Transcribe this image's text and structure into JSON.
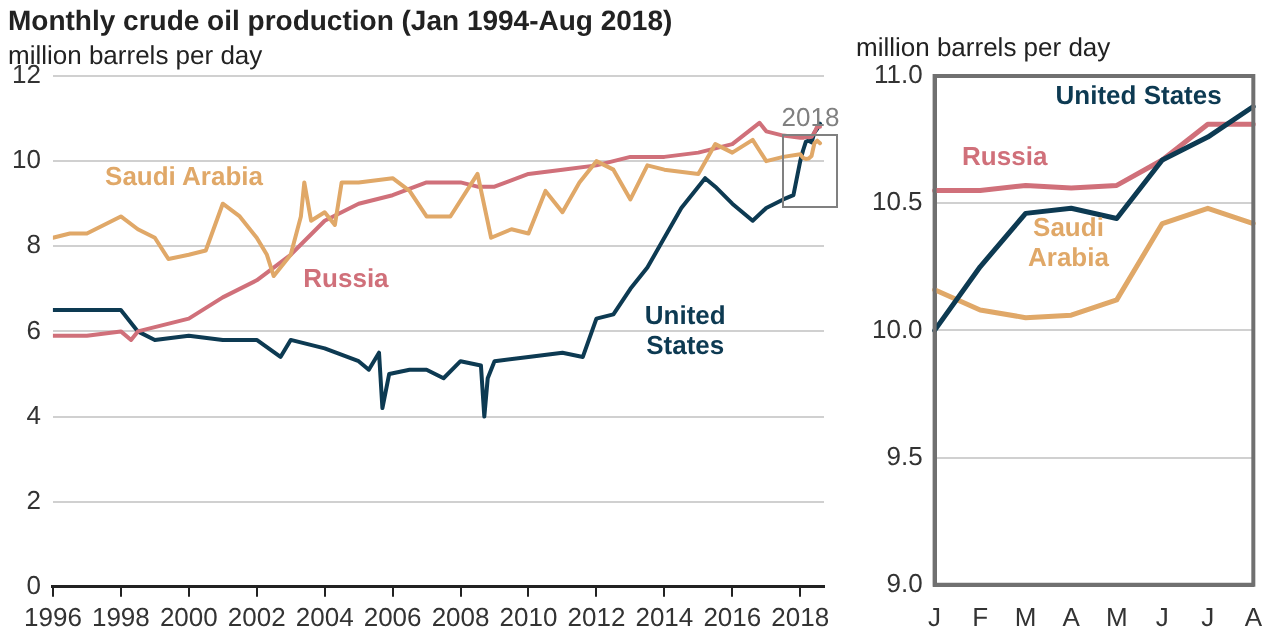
{
  "chart_data": [
    {
      "type": "line",
      "title": "Monthly crude oil production (Jan 1994-Aug 2018)",
      "ylabel": "million barrels per day",
      "xlim": [
        1996,
        2018.7
      ],
      "xticks": [
        1996,
        1998,
        2000,
        2002,
        2004,
        2006,
        2008,
        2010,
        2012,
        2014,
        2016,
        2018
      ],
      "ylim": [
        0,
        12
      ],
      "yticks": [
        0,
        2,
        4,
        6,
        8,
        10,
        12
      ],
      "grid": "y",
      "legend": false,
      "annotations": [
        {
          "text": "2018",
          "x": 2018.3,
          "y": 11
        }
      ],
      "series": [
        {
          "name": "Saudi Arabia",
          "color": "#e0a868",
          "x": [
            1996,
            1996.5,
            1997,
            1998,
            1998.5,
            1999,
            1999.4,
            2000,
            2000.5,
            2001,
            2001.5,
            2002,
            2002.3,
            2002.5,
            2003,
            2003.3,
            2003.4,
            2003.6,
            2004,
            2004.3,
            2004.5,
            2005,
            2006,
            2006.5,
            2007,
            2007.7,
            2008.5,
            2008.9,
            2009.5,
            2010,
            2010.5,
            2011,
            2011.5,
            2012,
            2012.5,
            2013,
            2013.5,
            2014,
            2015,
            2015.5,
            2016,
            2016.6,
            2017,
            2017.5,
            2018,
            2018.083,
            2018.167,
            2018.25,
            2018.333,
            2018.417,
            2018.5,
            2018.583
          ],
          "values": [
            8.2,
            8.3,
            8.3,
            8.7,
            8.4,
            8.2,
            7.7,
            7.8,
            7.9,
            9.0,
            8.7,
            8.2,
            7.8,
            7.3,
            7.8,
            8.7,
            9.5,
            8.6,
            8.8,
            8.5,
            9.5,
            9.5,
            9.6,
            9.3,
            8.7,
            8.7,
            9.7,
            8.2,
            8.4,
            8.3,
            9.3,
            8.8,
            9.5,
            10.0,
            9.8,
            9.1,
            9.9,
            9.8,
            9.7,
            10.4,
            10.2,
            10.5,
            10.0,
            10.1,
            10.16,
            10.08,
            10.05,
            10.06,
            10.12,
            10.42,
            10.48,
            10.42
          ]
        },
        {
          "name": "Russia",
          "color": "#d0707a",
          "x": [
            1996,
            1997,
            1998,
            1998.3,
            1998.5,
            1999,
            2000,
            2001,
            2002,
            2003,
            2004,
            2005,
            2006,
            2007,
            2008,
            2008.5,
            2009,
            2010,
            2011,
            2012,
            2013,
            2014,
            2015,
            2016,
            2016.8,
            2017,
            2017.5,
            2018,
            2018.083,
            2018.167,
            2018.25,
            2018.333,
            2018.417,
            2018.5,
            2018.583
          ],
          "values": [
            5.9,
            5.9,
            6.0,
            5.8,
            6.0,
            6.1,
            6.3,
            6.8,
            7.2,
            7.8,
            8.6,
            9.0,
            9.2,
            9.5,
            9.5,
            9.4,
            9.4,
            9.7,
            9.8,
            9.9,
            10.1,
            10.1,
            10.2,
            10.4,
            10.9,
            10.7,
            10.6,
            10.55,
            10.55,
            10.57,
            10.56,
            10.57,
            10.67,
            10.81,
            10.81
          ]
        },
        {
          "name": "United States",
          "color": "#0d3a52",
          "x": [
            1996,
            1997,
            1998,
            1998.5,
            1999,
            2000,
            2001,
            2002,
            2002.7,
            2003,
            2004,
            2005,
            2005.3,
            2005.6,
            2005.7,
            2005.9,
            2006.5,
            2007,
            2007.5,
            2008,
            2008.6,
            2008.7,
            2008.8,
            2009,
            2010,
            2011,
            2011.6,
            2012,
            2012.5,
            2013,
            2013.5,
            2014,
            2014.5,
            2015.2,
            2015.5,
            2016,
            2016.6,
            2017,
            2017.5,
            2017.8,
            2018,
            2018.083,
            2018.167,
            2018.25,
            2018.333,
            2018.417,
            2018.5,
            2018.583
          ],
          "values": [
            6.5,
            6.5,
            6.5,
            6.0,
            5.8,
            5.9,
            5.8,
            5.8,
            5.4,
            5.8,
            5.6,
            5.3,
            5.1,
            5.5,
            4.2,
            5.0,
            5.1,
            5.1,
            4.9,
            5.3,
            5.2,
            4.0,
            4.9,
            5.3,
            5.4,
            5.5,
            5.4,
            6.3,
            6.4,
            7.0,
            7.5,
            8.2,
            8.9,
            9.6,
            9.4,
            9.0,
            8.6,
            8.9,
            9.1,
            9.2,
            10.0,
            10.25,
            10.46,
            10.48,
            10.44,
            10.67,
            10.76,
            10.88
          ]
        }
      ]
    },
    {
      "type": "line",
      "ylabel": "million barrels per day",
      "categories": [
        "J",
        "F",
        "M",
        "A",
        "M",
        "J",
        "J",
        "A"
      ],
      "ylim": [
        9,
        11
      ],
      "yticks": [
        {
          "value": 9,
          "label": "9.0"
        },
        {
          "value": 9.5,
          "label": "9.5"
        },
        {
          "value": 10,
          "label": "10.0"
        },
        {
          "value": 10.5,
          "label": "10.5"
        },
        {
          "value": 11,
          "label": "11.0"
        }
      ],
      "grid": "y",
      "legend": false,
      "series": [
        {
          "name": "United States",
          "color": "#0d3a52",
          "values": [
            10.0,
            10.25,
            10.46,
            10.48,
            10.44,
            10.67,
            10.76,
            10.88
          ]
        },
        {
          "name": "Russia",
          "color": "#d0707a",
          "values": [
            10.55,
            10.55,
            10.57,
            10.56,
            10.57,
            10.67,
            10.81,
            10.81
          ]
        },
        {
          "name": "Saudi Arabia",
          "color": "#e0a868",
          "values": [
            10.16,
            10.08,
            10.05,
            10.06,
            10.12,
            10.42,
            10.48,
            10.42
          ]
        }
      ]
    }
  ]
}
